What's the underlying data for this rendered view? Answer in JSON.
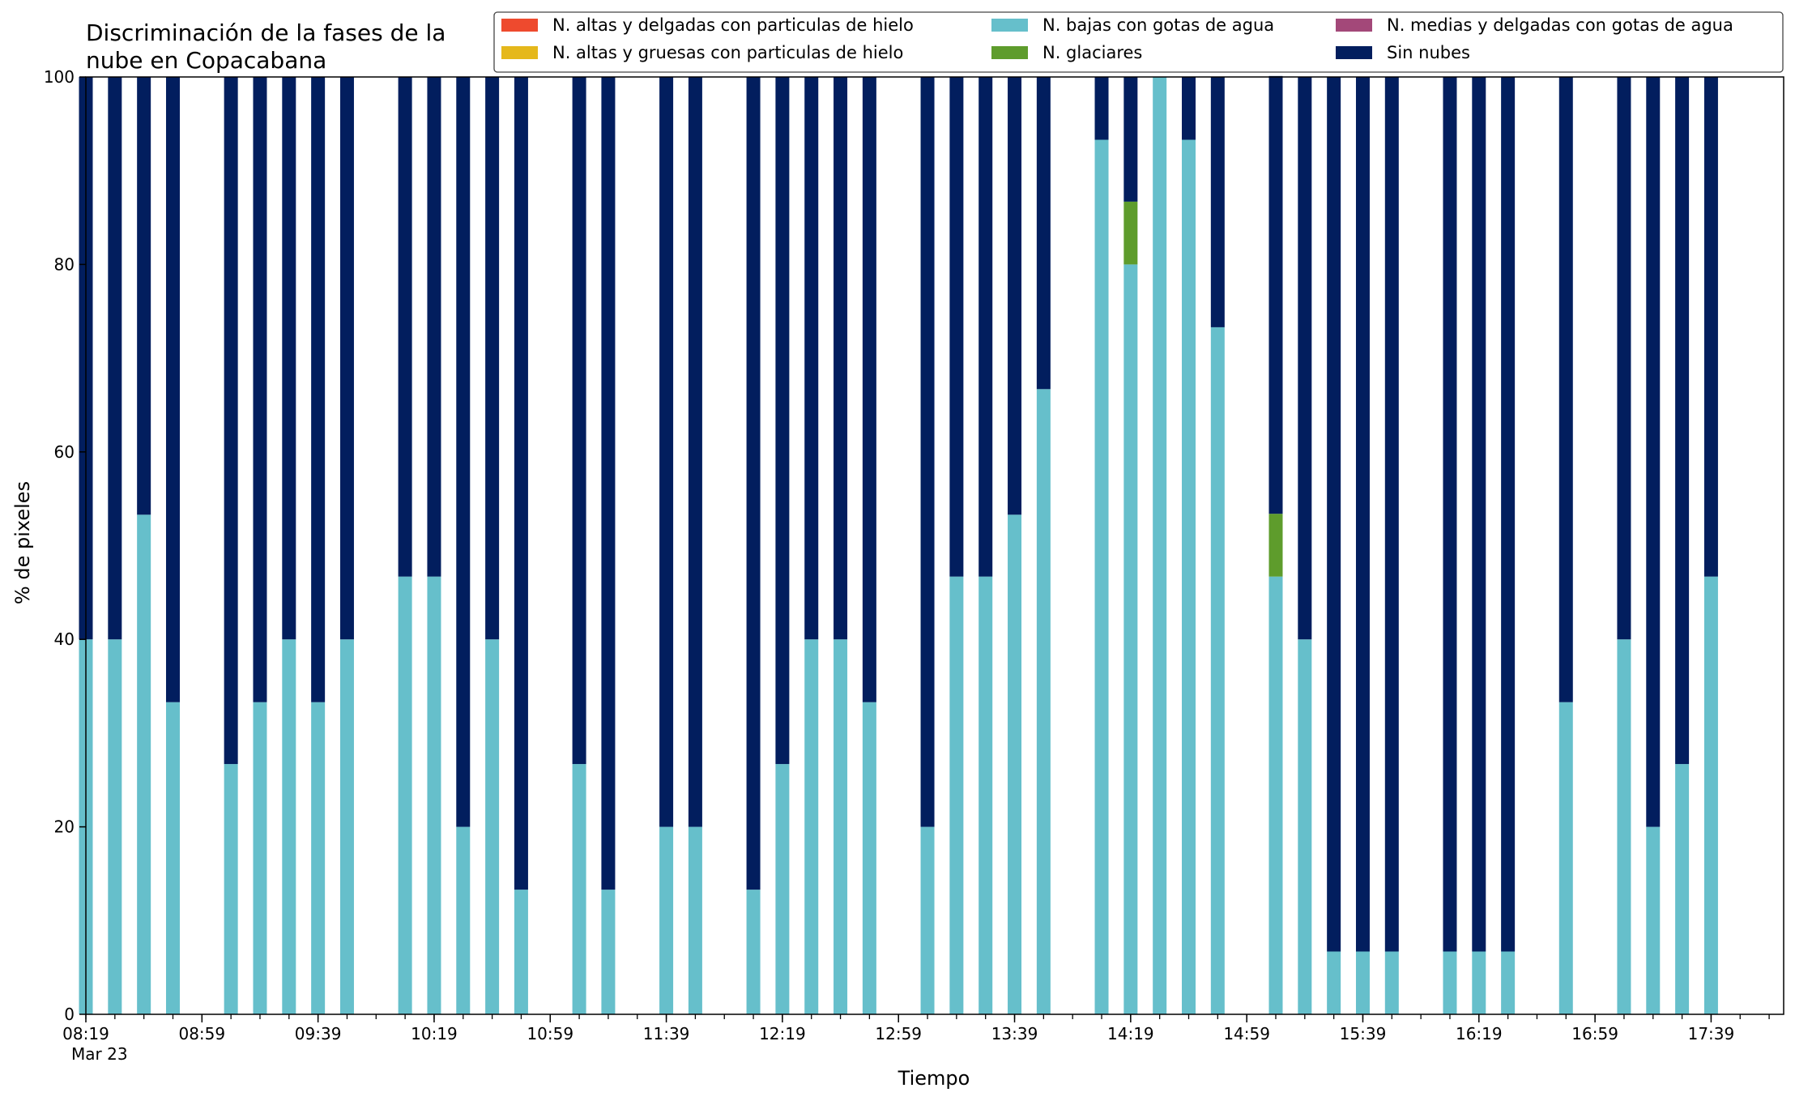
{
  "chart_data": {
    "type": "bar",
    "stacked": true,
    "title": "Discriminación de la fases de la\nnube en Copacabana",
    "xlabel": "Tiempo",
    "ylabel": "% de pixeles",
    "ylim": [
      0,
      100
    ],
    "yticks": [
      0,
      20,
      40,
      60,
      80,
      100
    ],
    "grid": false,
    "legend_position": "top-right",
    "x_start": "08:19",
    "x_end": "18:04",
    "interval_minutes": 10,
    "major_tick_labels": [
      "08:19",
      "08:59",
      "09:39",
      "10:19",
      "10:59",
      "11:39",
      "12:19",
      "12:59",
      "13:39",
      "14:19",
      "14:59",
      "15:39",
      "16:19",
      "16:59",
      "17:39"
    ],
    "date_label": "Mar 23",
    "times": [
      "08:19",
      "08:29",
      "08:39",
      "08:49",
      "09:09",
      "09:19",
      "09:29",
      "09:39",
      "09:49",
      "10:09",
      "10:19",
      "10:29",
      "10:39",
      "10:49",
      "11:09",
      "11:19",
      "11:39",
      "11:49",
      "12:09",
      "12:19",
      "12:29",
      "12:39",
      "12:49",
      "13:09",
      "13:19",
      "13:29",
      "13:39",
      "13:49",
      "14:09",
      "14:19",
      "14:29",
      "14:39",
      "14:49",
      "15:09",
      "15:19",
      "15:29",
      "15:39",
      "15:49",
      "16:09",
      "16:19",
      "16:29",
      "16:49",
      "17:09",
      "17:19",
      "17:29",
      "17:39"
    ],
    "series": [
      {
        "name": "N. altas y delgadas con particulas de hielo",
        "color": "#EE4A2E",
        "values": [
          0,
          0,
          0,
          0,
          0,
          0,
          0,
          0,
          0,
          0,
          0,
          0,
          0,
          0,
          0,
          0,
          0,
          0,
          0,
          0,
          0,
          0,
          0,
          0,
          0,
          0,
          0,
          0,
          0,
          0,
          0,
          0,
          0,
          0,
          0,
          0,
          0,
          0,
          0,
          0,
          0,
          0,
          0,
          0,
          0,
          0
        ]
      },
      {
        "name": "N. altas y gruesas con particulas de hielo",
        "color": "#E5B81B",
        "values": [
          0,
          0,
          0,
          0,
          0,
          0,
          0,
          0,
          0,
          0,
          0,
          0,
          0,
          0,
          0,
          0,
          0,
          0,
          0,
          0,
          0,
          0,
          0,
          0,
          0,
          0,
          0,
          0,
          0,
          0,
          0,
          0,
          0,
          0,
          0,
          0,
          0,
          0,
          0,
          0,
          0,
          0,
          0,
          0,
          0,
          0
        ]
      },
      {
        "name": "N. bajas con gotas de agua",
        "color": "#66BFCB",
        "values": [
          40,
          40,
          53.3,
          33.3,
          26.7,
          33.3,
          40,
          33.3,
          40,
          46.7,
          46.7,
          20,
          40,
          13.3,
          26.7,
          13.3,
          20,
          20,
          13.3,
          26.7,
          40,
          40,
          33.3,
          20,
          46.7,
          46.7,
          53.3,
          66.7,
          93.3,
          80,
          100,
          93.3,
          73.3,
          46.7,
          40,
          6.7,
          6.7,
          6.7,
          6.7,
          6.7,
          6.7,
          33.3,
          40,
          20,
          26.7,
          46.7
        ]
      },
      {
        "name": "N. glaciares",
        "color": "#5E9C2C",
        "values": [
          0,
          0,
          0,
          0,
          0,
          0,
          0,
          0,
          0,
          0,
          0,
          0,
          0,
          0,
          0,
          0,
          0,
          0,
          0,
          0,
          0,
          0,
          0,
          0,
          0,
          0,
          0,
          0,
          0,
          6.7,
          0,
          0,
          0,
          6.7,
          0,
          0,
          0,
          0,
          0,
          0,
          0,
          0,
          0,
          0,
          0,
          0
        ]
      },
      {
        "name": "N. medias y delgadas con gotas de agua",
        "color": "#A34879",
        "values": [
          0,
          0,
          0,
          0,
          0,
          0,
          0,
          0,
          0,
          0,
          0,
          0,
          0,
          0,
          0,
          0,
          0,
          0,
          0,
          0,
          0,
          0,
          0,
          0,
          0,
          0,
          0,
          0,
          0,
          0,
          0,
          0,
          0,
          0,
          0,
          0,
          0,
          0,
          0,
          0,
          0,
          0,
          0,
          0,
          0,
          0
        ]
      },
      {
        "name": "Sin nubes",
        "color": "#021E5E",
        "values": [
          60,
          60,
          46.7,
          66.7,
          73.3,
          66.7,
          60,
          66.7,
          60,
          53.3,
          53.3,
          80,
          60,
          86.7,
          73.3,
          86.7,
          80,
          80,
          86.7,
          73.3,
          60,
          60,
          66.7,
          80,
          53.3,
          53.3,
          46.7,
          33.3,
          6.7,
          13.3,
          0,
          6.7,
          26.7,
          46.7,
          60,
          93.3,
          93.3,
          93.3,
          93.3,
          93.3,
          93.3,
          66.7,
          60,
          80,
          73.3,
          53.3
        ]
      }
    ],
    "legend_order": [
      "N. altas y delgadas con particulas de hielo",
      "N. altas y gruesas con particulas de hielo",
      "N. bajas con gotas de agua",
      "N. glaciares",
      "N. medias y delgadas con gotas de agua",
      "Sin nubes"
    ]
  }
}
